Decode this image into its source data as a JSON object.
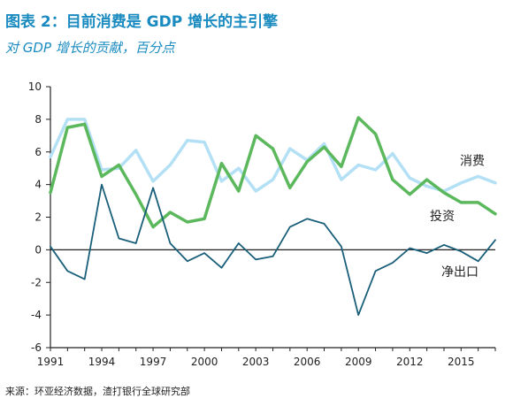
{
  "title": "图表 2：目前消费是 GDP 增长的主引擎",
  "subtitle": "对 GDP 增长的贡献，百分点",
  "source": "来源：环亚经济数据，渣打银行全球研究部",
  "colors": {
    "title": "#1a8bc0",
    "consumption": "#b3e0f5",
    "investment": "#5cb85c",
    "net_exports": "#1a5f7a",
    "axis": "#222222"
  },
  "chart_data": {
    "type": "line",
    "title": "图表 2：目前消费是 GDP 增长的主引擎",
    "subtitle": "对 GDP 增长的贡献，百分点",
    "xlabel": "",
    "ylabel": "",
    "x": [
      1991,
      1992,
      1993,
      1994,
      1995,
      1996,
      1997,
      1998,
      1999,
      2000,
      2001,
      2002,
      2003,
      2004,
      2005,
      2006,
      2007,
      2008,
      2009,
      2010,
      2011,
      2012,
      2013,
      2014,
      2015,
      2016,
      2017
    ],
    "x_tick_labels": [
      "1991",
      "1994",
      "1997",
      "2000",
      "2003",
      "2006",
      "2009",
      "2012",
      "2015"
    ],
    "ylim": [
      -6,
      10
    ],
    "y_ticks": [
      -6,
      -4,
      -2,
      0,
      2,
      4,
      6,
      8,
      10
    ],
    "grid": false,
    "series": [
      {
        "name": "消费",
        "key": "consumption",
        "values": [
          5.7,
          8.0,
          8.0,
          4.9,
          5.0,
          6.1,
          4.2,
          5.2,
          6.7,
          6.6,
          4.2,
          5.0,
          3.6,
          4.3,
          6.2,
          5.5,
          6.5,
          4.3,
          5.2,
          4.9,
          5.9,
          4.4,
          3.9,
          3.6,
          4.1,
          4.5,
          4.1
        ]
      },
      {
        "name": "投资",
        "key": "investment",
        "values": [
          3.5,
          7.5,
          7.7,
          4.5,
          5.2,
          3.4,
          1.4,
          2.3,
          1.7,
          1.9,
          5.3,
          3.6,
          7.0,
          6.2,
          3.8,
          5.4,
          6.3,
          5.1,
          8.1,
          7.1,
          4.3,
          3.4,
          4.3,
          3.5,
          2.9,
          2.9,
          2.2
        ]
      },
      {
        "name": "净出口",
        "key": "net_exports",
        "values": [
          0.2,
          -1.3,
          -1.8,
          4.0,
          0.7,
          0.4,
          3.8,
          0.4,
          -0.7,
          -0.2,
          -1.1,
          0.4,
          -0.6,
          -0.4,
          1.4,
          1.9,
          1.6,
          0.2,
          -4.0,
          -1.3,
          -0.8,
          0.1,
          -0.2,
          0.3,
          -0.1,
          -0.7,
          0.6
        ]
      }
    ]
  }
}
